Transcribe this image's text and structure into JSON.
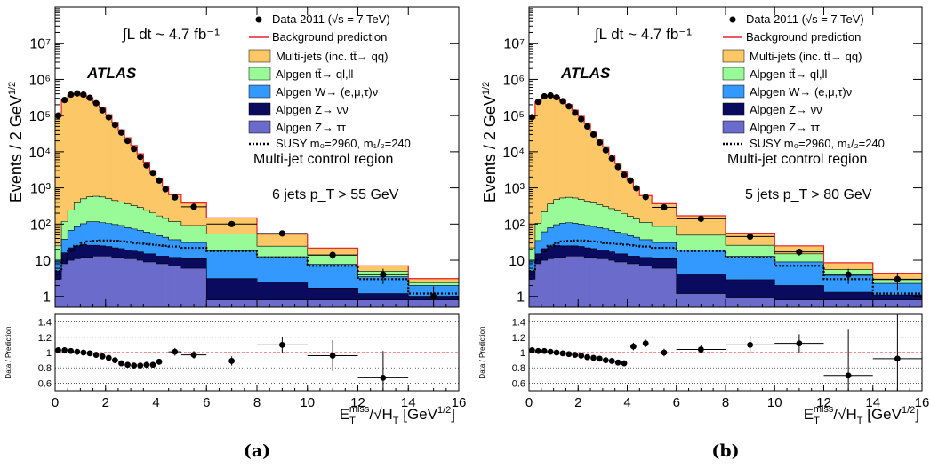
{
  "panels": [
    {
      "caption": "(a)",
      "region": "Multi-jet control region",
      "selection": "6 jets p_T > 55 GeV",
      "atlas": "ATLAS",
      "lumi": "∫L dt ~ 4.7 fb⁻¹"
    },
    {
      "caption": "(b)",
      "region": "Multi-jet control region",
      "selection": "5 jets p_T > 80 GeV",
      "atlas": "ATLAS",
      "lumi": "∫L dt ~ 4.7 fb⁻¹"
    }
  ],
  "legend": {
    "data": "Data 2011 (√s = 7 TeV)",
    "bkg": "Background prediction",
    "multijet": "Multi-jets (inc. tt̄→ qq)",
    "ttbar": "Alpgen tt̄→ ql,ll",
    "w": "Alpgen W→ (e,μ,τ)ν",
    "znn": "Alpgen Z→ νν",
    "ztt": "Alpgen Z→ ττ",
    "susy": "SUSY m₀=2960, m₁/₂=240"
  },
  "colors": {
    "multijet": "#fcc767",
    "ttbar": "#98fb98",
    "w": "#3399ff",
    "znn": "#0a0a5e",
    "ztt": "#6b6bcc",
    "bkg_line": "#e8202a",
    "data": "#000000"
  },
  "chart_data": [
    {
      "type": "area",
      "stacked": true,
      "log_y": true,
      "xlabel": "E_T^miss/√H_T [GeV^1/2]",
      "ylabel": "Events / 2 GeV^1/2",
      "xlim": [
        0,
        16
      ],
      "ylim": [
        0.5,
        100000000
      ],
      "x_ticks": [
        0,
        2,
        4,
        6,
        8,
        10,
        12,
        14,
        16
      ],
      "y_ticks": [
        "1",
        "10",
        "10²",
        "10³",
        "10⁴",
        "10⁵",
        "10⁶",
        "10⁷"
      ],
      "bin_edges": [
        0,
        0.25,
        0.5,
        0.75,
        1,
        1.25,
        1.5,
        1.75,
        2,
        2.25,
        2.5,
        2.75,
        3,
        3.25,
        3.5,
        3.75,
        4,
        4.25,
        4.5,
        5,
        6,
        8,
        10,
        12,
        14,
        16
      ],
      "series": [
        {
          "name": "Alpgen Z→ ττ",
          "values": [
            3,
            8,
            10,
            11,
            12,
            12,
            13,
            13,
            13,
            12,
            12,
            11,
            11,
            10,
            9,
            9,
            8,
            8,
            7,
            6,
            0.8,
            0.8,
            0.8,
            0.8,
            0.8
          ]
        },
        {
          "name": "Alpgen Z→ νν",
          "values": [
            2,
            8,
            12,
            14,
            15,
            14,
            13,
            12,
            11,
            10,
            9,
            8,
            7,
            7,
            6,
            6,
            5,
            5,
            5,
            5,
            2.3,
            1.7,
            0.9,
            0.4,
            0.2
          ]
        },
        {
          "name": "Alpgen W→ (e,μ,τ)ν",
          "values": [
            5,
            22,
            45,
            60,
            75,
            90,
            90,
            85,
            80,
            75,
            70,
            60,
            55,
            50,
            45,
            40,
            35,
            30,
            25,
            20,
            15,
            10,
            6,
            2.3,
            1
          ]
        },
        {
          "name": "Alpgen tt̄→ ql,ll",
          "values": [
            15,
            80,
            180,
            300,
            400,
            450,
            470,
            450,
            400,
            350,
            320,
            280,
            250,
            220,
            180,
            150,
            120,
            100,
            80,
            60,
            35,
            12,
            6,
            1.5,
            0.4
          ]
        },
        {
          "name": "Multi-jets (inc. tt̄→ qq)",
          "values": [
            95000,
            270000,
            370000,
            400000,
            350000,
            300000,
            230000,
            160000,
            105000,
            65000,
            40000,
            24000,
            14500,
            8500,
            4900,
            2800,
            1700,
            950,
            530,
            290,
            95,
            28,
            8,
            2,
            0.7
          ]
        },
        {
          "name": "SUSY m₀=2960, m₁/₂=240",
          "style": "dotted",
          "values": [
            5,
            10,
            18,
            25,
            30,
            33,
            34,
            35,
            35,
            34,
            33,
            32,
            30,
            29,
            28,
            27,
            26,
            25,
            24,
            22,
            18,
            12,
            7,
            3,
            1.2
          ]
        }
      ],
      "data": {
        "name": "Data 2011 (√s = 7 TeV)",
        "x": [
          0.125,
          0.375,
          0.625,
          0.875,
          1.125,
          1.375,
          1.625,
          1.875,
          2.125,
          2.375,
          2.625,
          2.875,
          3.125,
          3.375,
          3.625,
          3.875,
          4.125,
          4.375,
          4.75,
          5.5,
          7,
          9,
          11,
          13,
          15
        ],
        "y": [
          100000,
          270000,
          380000,
          410000,
          380000,
          310000,
          220000,
          140000,
          90000,
          55000,
          34000,
          20000,
          12000,
          7200,
          4200,
          2600,
          1600,
          920,
          550,
          300,
          100,
          55,
          14,
          4,
          1
        ],
        "xerr": [
          0.125,
          0.125,
          0.125,
          0.125,
          0.125,
          0.125,
          0.125,
          0.125,
          0.125,
          0.125,
          0.125,
          0.125,
          0.125,
          0.125,
          0.125,
          0.125,
          0.125,
          0.125,
          0.25,
          0.5,
          1,
          1,
          1,
          1,
          1
        ]
      },
      "ratio": {
        "ylabel": "Data / Prediction",
        "ylim": [
          0.5,
          1.5
        ],
        "y_ticks": [
          0.6,
          0.8,
          1,
          1.2,
          1.4
        ],
        "x": [
          0.125,
          0.375,
          0.625,
          0.875,
          1.125,
          1.375,
          1.625,
          1.875,
          2.125,
          2.375,
          2.625,
          2.875,
          3.125,
          3.375,
          3.625,
          3.875,
          4.125,
          4.75,
          5.5,
          7,
          9,
          11,
          13
        ],
        "y": [
          1.03,
          1.03,
          1.02,
          1.01,
          1.0,
          0.99,
          0.97,
          0.95,
          0.93,
          0.9,
          0.86,
          0.84,
          0.83,
          0.83,
          0.84,
          0.84,
          0.88,
          1.01,
          0.97,
          0.89,
          1.1,
          0.96,
          0.67
        ],
        "xerr": [
          0.125,
          0.125,
          0.125,
          0.125,
          0.125,
          0.125,
          0.125,
          0.125,
          0.125,
          0.125,
          0.125,
          0.125,
          0.125,
          0.125,
          0.125,
          0.125,
          0.125,
          0.25,
          0.5,
          1,
          1,
          1,
          1
        ],
        "yerr": [
          0.01,
          0.01,
          0.01,
          0.01,
          0.01,
          0.01,
          0.01,
          0.01,
          0.01,
          0.01,
          0.01,
          0.01,
          0.01,
          0.02,
          0.02,
          0.02,
          0.03,
          0.05,
          0.05,
          0.06,
          0.1,
          0.2,
          0.35
        ]
      }
    },
    {
      "type": "area",
      "stacked": true,
      "log_y": true,
      "xlabel": "E_T^miss/√H_T [GeV^1/2]",
      "ylabel": "Events / 2 GeV^1/2",
      "xlim": [
        0,
        16
      ],
      "ylim": [
        0.5,
        100000000
      ],
      "x_ticks": [
        0,
        2,
        4,
        6,
        8,
        10,
        12,
        14,
        16
      ],
      "y_ticks": [
        "1",
        "10",
        "10²",
        "10³",
        "10⁴",
        "10⁵",
        "10⁶",
        "10⁷"
      ],
      "bin_edges": [
        0,
        0.25,
        0.5,
        0.75,
        1,
        1.25,
        1.5,
        1.75,
        2,
        2.25,
        2.5,
        2.75,
        3,
        3.25,
        3.5,
        3.75,
        4,
        4.25,
        4.5,
        5,
        6,
        8,
        10,
        12,
        14,
        16
      ],
      "series": [
        {
          "name": "Alpgen Z→ ττ",
          "values": [
            3,
            8,
            10,
            11,
            12,
            12,
            13,
            13,
            13,
            12,
            12,
            11,
            11,
            10,
            9,
            9,
            8,
            8,
            7,
            6,
            1.2,
            0.9,
            0.8,
            0.8,
            0.8
          ]
        },
        {
          "name": "Alpgen Z→ νν",
          "values": [
            2,
            7,
            11,
            13,
            14,
            13,
            12,
            12,
            11,
            10,
            9,
            8,
            8,
            7,
            6,
            6,
            5,
            5,
            5,
            5,
            3,
            2,
            1.2,
            0.5,
            0.3
          ]
        },
        {
          "name": "Alpgen W→ (e,μ,τ)ν",
          "values": [
            5,
            20,
            40,
            55,
            70,
            80,
            85,
            80,
            75,
            70,
            65,
            60,
            55,
            50,
            45,
            40,
            35,
            30,
            25,
            20,
            15,
            10,
            7,
            2.5,
            1.2
          ]
        },
        {
          "name": "Alpgen tt̄→ ql,ll",
          "values": [
            12,
            70,
            160,
            280,
            380,
            420,
            440,
            420,
            380,
            340,
            300,
            260,
            230,
            200,
            170,
            140,
            115,
            95,
            75,
            55,
            30,
            13,
            6,
            1.7,
            0.6
          ]
        },
        {
          "name": "Multi-jets (inc. tt̄→ qq)",
          "values": [
            85000,
            240000,
            330000,
            360000,
            320000,
            260000,
            200000,
            140000,
            95000,
            60000,
            37000,
            22000,
            13500,
            7800,
            4500,
            2600,
            1500,
            900,
            500,
            280,
            120,
            30,
            10,
            3,
            1.5
          ]
        },
        {
          "name": "SUSY m₀=2960, m₁/₂=240",
          "style": "dotted",
          "values": [
            5,
            10,
            18,
            25,
            30,
            33,
            34,
            35,
            35,
            34,
            33,
            32,
            30,
            29,
            28,
            27,
            26,
            25,
            24,
            22,
            18,
            12,
            7,
            3,
            1.2
          ]
        }
      ],
      "data": {
        "name": "Data 2011 (√s = 7 TeV)",
        "x": [
          0.125,
          0.375,
          0.625,
          0.875,
          1.125,
          1.375,
          1.625,
          1.875,
          2.125,
          2.375,
          2.625,
          2.875,
          3.125,
          3.375,
          3.625,
          3.875,
          4.125,
          4.375,
          4.75,
          5.5,
          7,
          9,
          11,
          13,
          15
        ],
        "y": [
          90000,
          240000,
          340000,
          360000,
          320000,
          250000,
          180000,
          120000,
          80000,
          50000,
          30000,
          18000,
          11000,
          6500,
          3800,
          2300,
          1600,
          980,
          560,
          290,
          140,
          45,
          17,
          4,
          3
        ],
        "xerr": [
          0.125,
          0.125,
          0.125,
          0.125,
          0.125,
          0.125,
          0.125,
          0.125,
          0.125,
          0.125,
          0.125,
          0.125,
          0.125,
          0.125,
          0.125,
          0.125,
          0.125,
          0.125,
          0.25,
          0.5,
          1,
          1,
          1,
          1,
          1
        ]
      },
      "ratio": {
        "ylabel": "Data / Prediction",
        "ylim": [
          0.5,
          1.5
        ],
        "y_ticks": [
          0.6,
          0.8,
          1,
          1.2,
          1.4
        ],
        "x": [
          0.125,
          0.375,
          0.625,
          0.875,
          1.125,
          1.375,
          1.625,
          1.875,
          2.125,
          2.375,
          2.625,
          2.875,
          3.125,
          3.375,
          3.625,
          3.875,
          4.25,
          4.75,
          5.5,
          7,
          9,
          11,
          13,
          15
        ],
        "y": [
          1.03,
          1.02,
          1.02,
          1.01,
          1.0,
          0.99,
          0.98,
          0.97,
          0.96,
          0.94,
          0.93,
          0.92,
          0.9,
          0.89,
          0.87,
          0.86,
          1.08,
          1.12,
          1.0,
          1.04,
          1.1,
          1.12,
          0.7,
          0.92
        ]
      }
    }
  ]
}
